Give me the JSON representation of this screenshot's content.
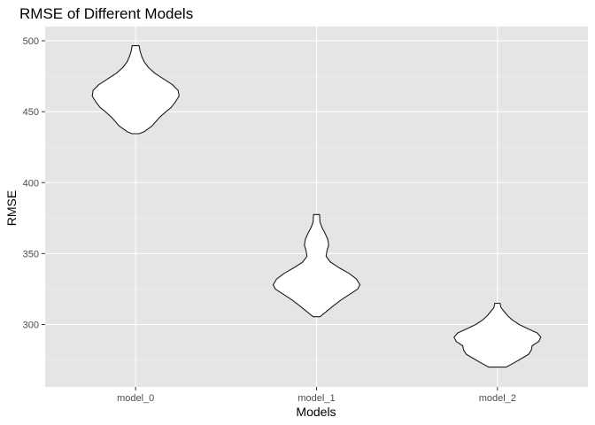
{
  "chart_data": {
    "type": "violin",
    "title": "RMSE of Different Models",
    "xlabel": "Models",
    "ylabel": "RMSE",
    "categories": [
      "model_0",
      "model_1",
      "model_2"
    ],
    "ylim": [
      256,
      510
    ],
    "yticks": [
      300,
      350,
      400,
      450,
      500
    ],
    "grid": true,
    "legend": "none",
    "violins": [
      {
        "category": "model_0",
        "min": 434.5,
        "max": 496.5,
        "profile": [
          [
            434.5,
            0.08
          ],
          [
            436,
            0.2
          ],
          [
            440,
            0.38
          ],
          [
            446,
            0.55
          ],
          [
            450,
            0.7
          ],
          [
            453,
            0.82
          ],
          [
            457,
            0.92
          ],
          [
            461,
            1.0
          ],
          [
            465,
            0.98
          ],
          [
            469,
            0.85
          ],
          [
            473,
            0.65
          ],
          [
            477,
            0.45
          ],
          [
            481,
            0.3
          ],
          [
            485,
            0.2
          ],
          [
            489,
            0.14
          ],
          [
            493,
            0.1
          ],
          [
            496.5,
            0.08
          ]
        ]
      },
      {
        "category": "model_1",
        "min": 305.5,
        "max": 377.5,
        "profile": [
          [
            305.5,
            0.08
          ],
          [
            309,
            0.22
          ],
          [
            313,
            0.38
          ],
          [
            317,
            0.55
          ],
          [
            321,
            0.75
          ],
          [
            325,
            0.95
          ],
          [
            328,
            1.0
          ],
          [
            332,
            0.92
          ],
          [
            336,
            0.75
          ],
          [
            340,
            0.52
          ],
          [
            344,
            0.32
          ],
          [
            348,
            0.22
          ],
          [
            352,
            0.24
          ],
          [
            356,
            0.28
          ],
          [
            360,
            0.26
          ],
          [
            364,
            0.2
          ],
          [
            368,
            0.13
          ],
          [
            372,
            0.08
          ],
          [
            377.5,
            0.07
          ]
        ]
      },
      {
        "category": "model_2",
        "min": 270,
        "max": 315,
        "profile": [
          [
            270,
            0.2
          ],
          [
            273,
            0.38
          ],
          [
            276,
            0.55
          ],
          [
            279,
            0.72
          ],
          [
            282,
            0.78
          ],
          [
            285,
            0.8
          ],
          [
            288,
            0.95
          ],
          [
            291,
            1.0
          ],
          [
            294,
            0.92
          ],
          [
            297,
            0.7
          ],
          [
            300,
            0.5
          ],
          [
            303,
            0.35
          ],
          [
            306,
            0.24
          ],
          [
            309,
            0.16
          ],
          [
            312,
            0.08
          ],
          [
            315,
            0.06
          ]
        ]
      }
    ]
  },
  "colors": {
    "panel": "#e5e5e5",
    "grid_major": "#ffffff",
    "grid_minor": "#f0f0f0",
    "violin_fill": "#ffffff",
    "violin_stroke": "#1a1a1a",
    "tick": "#333333"
  }
}
